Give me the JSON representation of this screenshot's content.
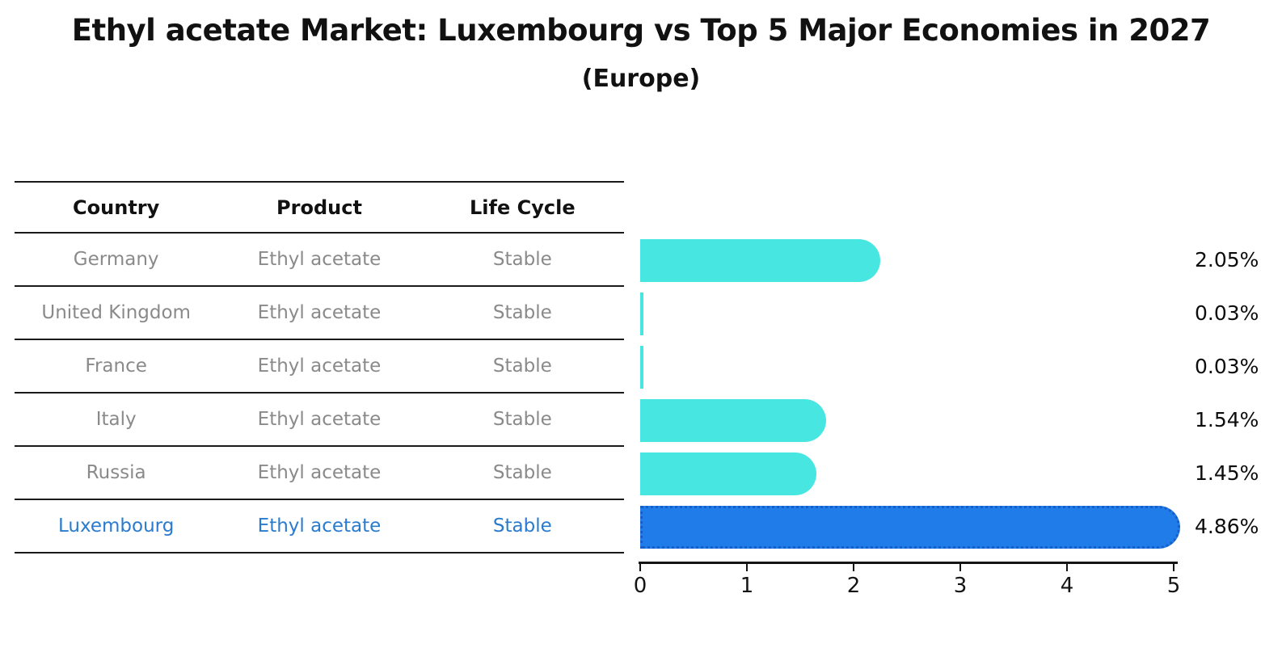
{
  "title": "Ethyl acetate Market: Luxembourg vs Top 5 Major Economies in 2027",
  "subtitle": "(Europe)",
  "table": {
    "columns": [
      "Country",
      "Product",
      "Life Cycle"
    ],
    "rows": [
      {
        "country": "Germany",
        "product": "Ethyl acetate",
        "life_cycle": "Stable",
        "highlight": false
      },
      {
        "country": "United Kingdom",
        "product": "Ethyl acetate",
        "life_cycle": "Stable",
        "highlight": false
      },
      {
        "country": "France",
        "product": "Ethyl acetate",
        "life_cycle": "Stable",
        "highlight": false
      },
      {
        "country": "Italy",
        "product": "Ethyl acetate",
        "life_cycle": "Stable",
        "highlight": false
      },
      {
        "country": "Russia",
        "product": "Ethyl acetate",
        "life_cycle": "Stable",
        "highlight": true
      }
    ]
  },
  "chart_data": {
    "type": "bar",
    "orientation": "horizontal",
    "title": "Ethyl acetate Market: Luxembourg vs Top 5 Major Economies in 2027",
    "subtitle": "(Europe)",
    "categories": [
      "Germany",
      "United Kingdom",
      "France",
      "Italy",
      "Russia",
      "Luxembourg"
    ],
    "values": [
      2.05,
      0.03,
      0.03,
      1.54,
      1.45,
      4.86
    ],
    "value_labels": [
      "2.05%",
      "0.03%",
      "0.03%",
      "1.54%",
      "1.45%",
      "4.86%"
    ],
    "xlim": [
      0,
      5
    ],
    "x_ticks": [
      0,
      1,
      2,
      3,
      4,
      5
    ],
    "grid": false,
    "legend": false,
    "highlight_index": 5,
    "bar_color": "#48e6e1",
    "highlight_bar_color": "#1f7ce8",
    "highlight_bar_edge": "#1a5cc8"
  },
  "colors": {
    "background": "#ffffff",
    "table_text": "#8a8a8a",
    "highlight_text": "#2a7bce",
    "heading_text": "#111111"
  }
}
